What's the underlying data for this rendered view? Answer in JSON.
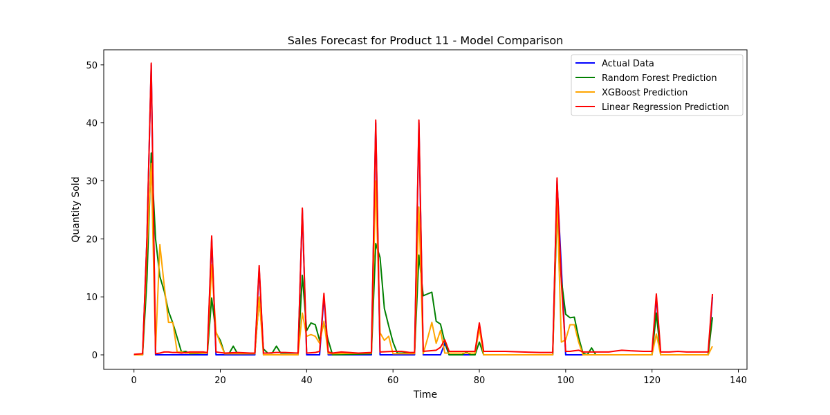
{
  "chart_data": {
    "type": "line",
    "title": "Sales Forecast for Product 11 - Model Comparison",
    "xlabel": "Time",
    "ylabel": "Quantity Sold",
    "xlim": [
      -7,
      142
    ],
    "ylim": [
      -2.5,
      52.6
    ],
    "xticks": [
      0,
      20,
      40,
      60,
      80,
      100,
      120,
      140
    ],
    "yticks": [
      0,
      10,
      20,
      30,
      40,
      50
    ],
    "grid": false,
    "legend_position": "top-right",
    "series": [
      {
        "name": "Actual Data",
        "color": "#0000ff",
        "points": [
          [
            0,
            0
          ],
          [
            2,
            0
          ],
          [
            3,
            20
          ],
          [
            4,
            50
          ],
          [
            5,
            0
          ],
          [
            17,
            0
          ],
          [
            18,
            20
          ],
          [
            19,
            0
          ],
          [
            28,
            0
          ],
          [
            29,
            15
          ],
          [
            30,
            0
          ],
          [
            38,
            0
          ],
          [
            39,
            25
          ],
          [
            40,
            0
          ],
          [
            43,
            0
          ],
          [
            44,
            10
          ],
          [
            45,
            0
          ],
          [
            55,
            0
          ],
          [
            56,
            40
          ],
          [
            57,
            0
          ],
          [
            65,
            0
          ],
          [
            66,
            40
          ],
          [
            67,
            0
          ],
          [
            71,
            0
          ],
          [
            72,
            2
          ],
          [
            73,
            0
          ],
          [
            79,
            0
          ],
          [
            80,
            5
          ],
          [
            81,
            0
          ],
          [
            97,
            0
          ],
          [
            98,
            30
          ],
          [
            99,
            15
          ],
          [
            100,
            0
          ],
          [
            120,
            0
          ],
          [
            121,
            10
          ],
          [
            122,
            0
          ],
          [
            133,
            0
          ],
          [
            134,
            10
          ]
        ]
      },
      {
        "name": "Random Forest Prediction",
        "color": "#008000",
        "points": [
          [
            0,
            0
          ],
          [
            2,
            0
          ],
          [
            3,
            13
          ],
          [
            4,
            34.8
          ],
          [
            5,
            20
          ],
          [
            6,
            13.5
          ],
          [
            7,
            11
          ],
          [
            8,
            7.5
          ],
          [
            9,
            5.5
          ],
          [
            10,
            3
          ],
          [
            11,
            0.5
          ],
          [
            12,
            0.6
          ],
          [
            13,
            0.2
          ],
          [
            17,
            0.3
          ],
          [
            18,
            9.8
          ],
          [
            19,
            3.8
          ],
          [
            20,
            2.5
          ],
          [
            21,
            0.2
          ],
          [
            22,
            0.2
          ],
          [
            23,
            1.5
          ],
          [
            24,
            0.2
          ],
          [
            28,
            0.2
          ],
          [
            29,
            9.8
          ],
          [
            30,
            1
          ],
          [
            31,
            0.3
          ],
          [
            32,
            0.3
          ],
          [
            33,
            1.5
          ],
          [
            34,
            0.3
          ],
          [
            38,
            0.3
          ],
          [
            39,
            13.7
          ],
          [
            40,
            4.2
          ],
          [
            41,
            5.5
          ],
          [
            42,
            5.2
          ],
          [
            43,
            2.5
          ],
          [
            44,
            5.5
          ],
          [
            45,
            2.5
          ],
          [
            46,
            0
          ],
          [
            55,
            0.2
          ],
          [
            56,
            19.2
          ],
          [
            57,
            16.8
          ],
          [
            58,
            8
          ],
          [
            59,
            5
          ],
          [
            60,
            2.2
          ],
          [
            61,
            0.3
          ],
          [
            65,
            0.3
          ],
          [
            66,
            17.2
          ],
          [
            67,
            10.2
          ],
          [
            68,
            10.5
          ],
          [
            69,
            10.8
          ],
          [
            70,
            5.8
          ],
          [
            71,
            5.3
          ],
          [
            72,
            2.2
          ],
          [
            73,
            0
          ],
          [
            76,
            0
          ],
          [
            77,
            0.5
          ],
          [
            78,
            0
          ],
          [
            79,
            0
          ],
          [
            80,
            2.2
          ],
          [
            81,
            0
          ],
          [
            97,
            0
          ],
          [
            98,
            25
          ],
          [
            99,
            13
          ],
          [
            100,
            7
          ],
          [
            101,
            6.4
          ],
          [
            102,
            6.5
          ],
          [
            103,
            3
          ],
          [
            104,
            0.3
          ],
          [
            105,
            0
          ],
          [
            106,
            1.2
          ],
          [
            107,
            0
          ],
          [
            120,
            0
          ],
          [
            121,
            7.2
          ],
          [
            122,
            0
          ],
          [
            133,
            0
          ],
          [
            134,
            6.5
          ]
        ]
      },
      {
        "name": "XGBoost Prediction",
        "color": "#ffa500",
        "points": [
          [
            0,
            0
          ],
          [
            2,
            0
          ],
          [
            3,
            18
          ],
          [
            4,
            33
          ],
          [
            5,
            1
          ],
          [
            6,
            19
          ],
          [
            7,
            12
          ],
          [
            8,
            5.6
          ],
          [
            9,
            5.6
          ],
          [
            10,
            0.5
          ],
          [
            11,
            0.5
          ],
          [
            12,
            0.3
          ],
          [
            17,
            0.3
          ],
          [
            18,
            15.5
          ],
          [
            19,
            4
          ],
          [
            20,
            2
          ],
          [
            21,
            0.2
          ],
          [
            28,
            0.2
          ],
          [
            29,
            10
          ],
          [
            30,
            0
          ],
          [
            38,
            0
          ],
          [
            39,
            7.2
          ],
          [
            40,
            3.2
          ],
          [
            41,
            3.5
          ],
          [
            42,
            3.2
          ],
          [
            43,
            2
          ],
          [
            44,
            5.8
          ],
          [
            45,
            0.2
          ],
          [
            55,
            0.3
          ],
          [
            56,
            30
          ],
          [
            57,
            3.8
          ],
          [
            58,
            2.5
          ],
          [
            59,
            3.2
          ],
          [
            60,
            0.2
          ],
          [
            65,
            0.2
          ],
          [
            66,
            25.5
          ],
          [
            67,
            0.2
          ],
          [
            68,
            2.8
          ],
          [
            69,
            5.6
          ],
          [
            70,
            2
          ],
          [
            71,
            4.2
          ],
          [
            72,
            0.3
          ],
          [
            73,
            0.3
          ],
          [
            79,
            0.3
          ],
          [
            80,
            4.5
          ],
          [
            81,
            0
          ],
          [
            97,
            0
          ],
          [
            98,
            27
          ],
          [
            99,
            2.2
          ],
          [
            100,
            2.6
          ],
          [
            101,
            5.2
          ],
          [
            102,
            5.2
          ],
          [
            103,
            2.2
          ],
          [
            104,
            0
          ],
          [
            120,
            0
          ],
          [
            121,
            3.6
          ],
          [
            122,
            0
          ],
          [
            133,
            0
          ],
          [
            134,
            1.5
          ]
        ]
      },
      {
        "name": "Linear Regression Prediction",
        "color": "#ff0000",
        "points": [
          [
            0,
            0.1
          ],
          [
            2,
            0.2
          ],
          [
            3,
            20
          ],
          [
            4,
            50.3
          ],
          [
            5,
            0.2
          ],
          [
            6,
            0.3
          ],
          [
            7,
            0.5
          ],
          [
            8,
            0.5
          ],
          [
            9,
            0.4
          ],
          [
            10,
            0.4
          ],
          [
            11,
            0.3
          ],
          [
            12,
            0.4
          ],
          [
            13,
            0.5
          ],
          [
            16,
            0.5
          ],
          [
            17,
            0.4
          ],
          [
            18,
            20.5
          ],
          [
            19,
            0.5
          ],
          [
            20,
            0.4
          ],
          [
            21,
            0.3
          ],
          [
            24,
            0.4
          ],
          [
            27,
            0.3
          ],
          [
            28,
            0.3
          ],
          [
            29,
            15.4
          ],
          [
            30,
            0.3
          ],
          [
            31,
            0.3
          ],
          [
            33,
            0.4
          ],
          [
            35,
            0.4
          ],
          [
            38,
            0.3
          ],
          [
            39,
            25.3
          ],
          [
            40,
            0.3
          ],
          [
            42,
            0.4
          ],
          [
            43,
            0.6
          ],
          [
            44,
            10.6
          ],
          [
            45,
            0.5
          ],
          [
            46,
            0.3
          ],
          [
            48,
            0.5
          ],
          [
            52,
            0.3
          ],
          [
            55,
            0.4
          ],
          [
            56,
            40.5
          ],
          [
            57,
            0.5
          ],
          [
            60,
            0.6
          ],
          [
            62,
            0.6
          ],
          [
            64,
            0.4
          ],
          [
            65,
            0.4
          ],
          [
            66,
            40.5
          ],
          [
            67,
            0.6
          ],
          [
            70,
            0.8
          ],
          [
            71,
            1.3
          ],
          [
            72,
            2.6
          ],
          [
            73,
            0.6
          ],
          [
            74,
            0.6
          ],
          [
            77,
            0.6
          ],
          [
            79,
            0.6
          ],
          [
            80,
            5.5
          ],
          [
            81,
            0.6
          ],
          [
            83,
            0.6
          ],
          [
            86,
            0.6
          ],
          [
            90,
            0.5
          ],
          [
            94,
            0.4
          ],
          [
            97,
            0.4
          ],
          [
            98,
            30.5
          ],
          [
            99,
            12.5
          ],
          [
            100,
            0.6
          ],
          [
            101,
            0.6
          ],
          [
            102,
            0.7
          ],
          [
            103,
            0.8
          ],
          [
            104,
            0.5
          ],
          [
            106,
            0.5
          ],
          [
            110,
            0.5
          ],
          [
            113,
            0.8
          ],
          [
            115,
            0.7
          ],
          [
            118,
            0.6
          ],
          [
            120,
            0.6
          ],
          [
            121,
            10.5
          ],
          [
            122,
            0.5
          ],
          [
            124,
            0.5
          ],
          [
            126,
            0.6
          ],
          [
            128,
            0.5
          ],
          [
            130,
            0.5
          ],
          [
            133,
            0.5
          ],
          [
            134,
            10.5
          ]
        ]
      }
    ]
  }
}
